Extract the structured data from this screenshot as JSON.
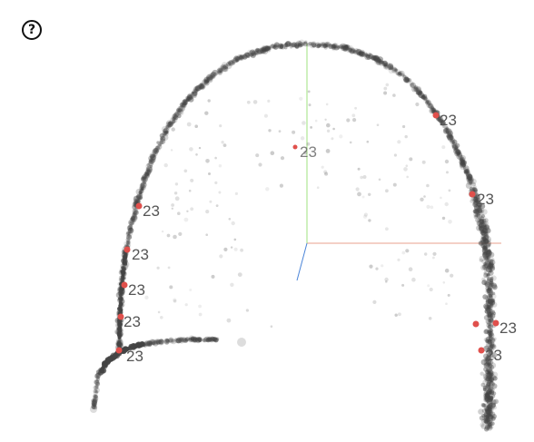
{
  "help": {
    "glyph": "?",
    "icon": "question-circle-icon"
  },
  "axes": {
    "x_color": "#e8a08c",
    "y_color": "#9fe07f",
    "z_color": "#4a84d8"
  },
  "point_color": "#444444",
  "highlight_color": "#e0504c",
  "label_color": "#555555",
  "highlight_labels": [
    {
      "id": "h1",
      "label": "23"
    },
    {
      "id": "h2",
      "label": "23"
    },
    {
      "id": "h3",
      "label": "23"
    },
    {
      "id": "h4",
      "label": "23"
    },
    {
      "id": "h5",
      "label": "23"
    },
    {
      "id": "h6",
      "label": "23"
    },
    {
      "id": "h7",
      "label": "23"
    },
    {
      "id": "h8",
      "label": "23"
    },
    {
      "id": "h9",
      "label": "23"
    },
    {
      "id": "h10",
      "label": "23"
    },
    {
      "id": "h11",
      "label": "23"
    }
  ]
}
